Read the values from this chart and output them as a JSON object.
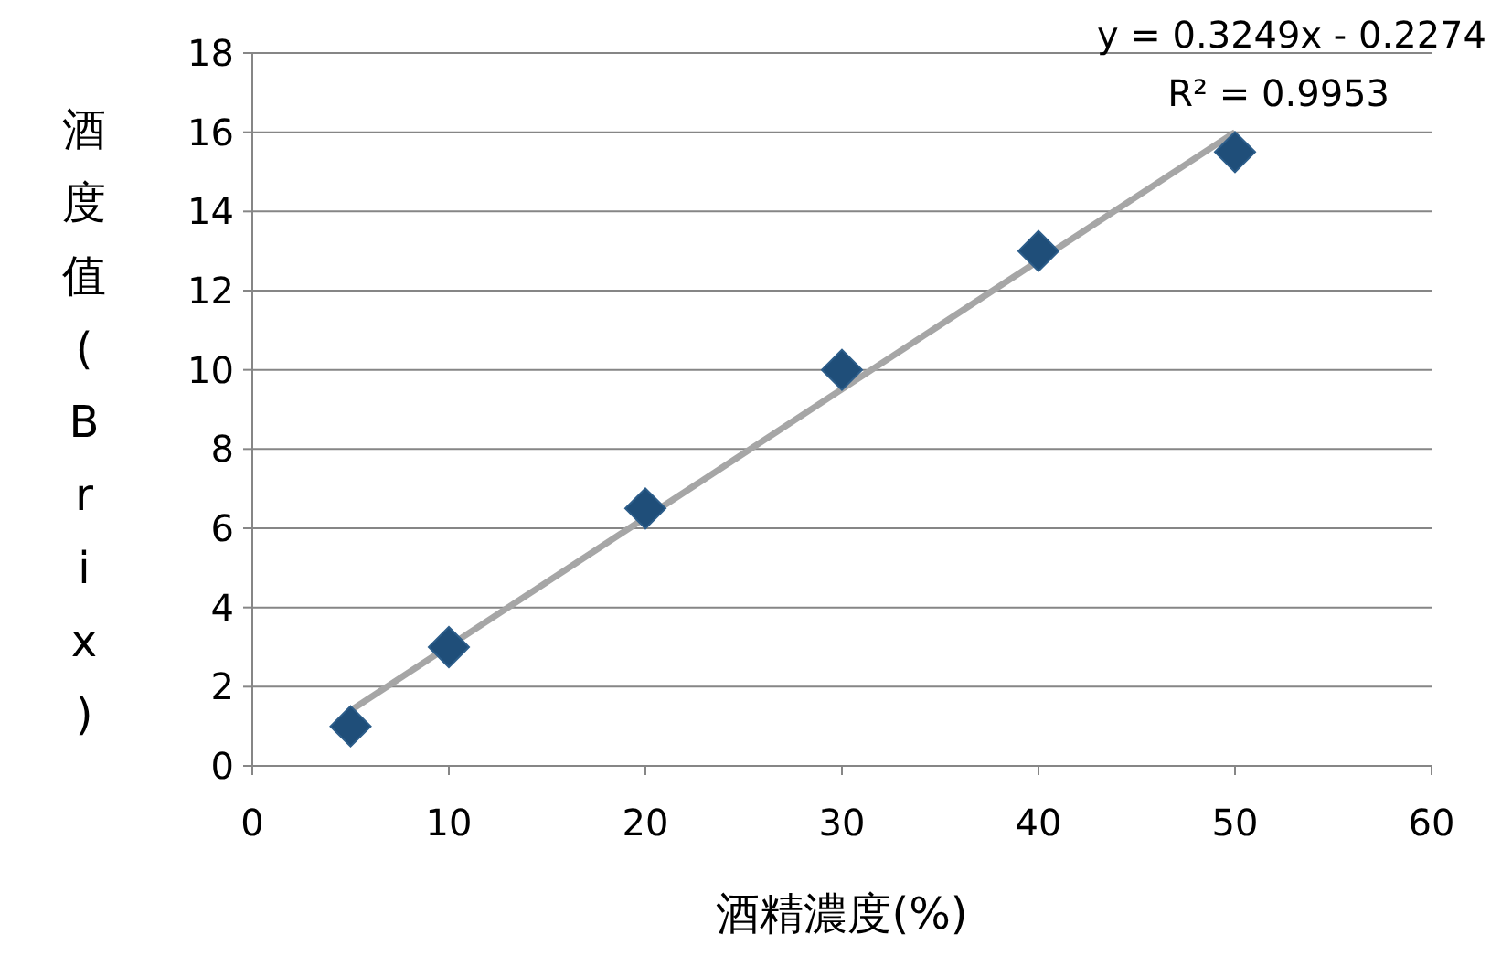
{
  "chart_data": {
    "type": "scatter",
    "xlabel": "酒精濃度(%)",
    "ylabel": "酒度值(Brix)",
    "xlim": [
      0,
      60
    ],
    "xticks": [
      0,
      10,
      20,
      30,
      40,
      50,
      60
    ],
    "ylim": [
      0,
      18
    ],
    "yticks": [
      0,
      2,
      4,
      6,
      8,
      10,
      12,
      14,
      16,
      18
    ],
    "grid": "y",
    "marker": "diamond",
    "series": [
      {
        "x": [
          5,
          10,
          20,
          30,
          40,
          50
        ],
        "values": [
          1,
          3,
          6.5,
          10,
          13,
          15.5
        ],
        "color": "#1f4e79"
      },
      {
        "type": "line",
        "x": [
          5,
          50
        ],
        "values": [
          1.4,
          16.0
        ],
        "color": "#a6a6a6",
        "marker": "none"
      }
    ],
    "annotations": [
      "y = 0.3249x - 0.2274",
      "R² = 0.9953"
    ]
  }
}
